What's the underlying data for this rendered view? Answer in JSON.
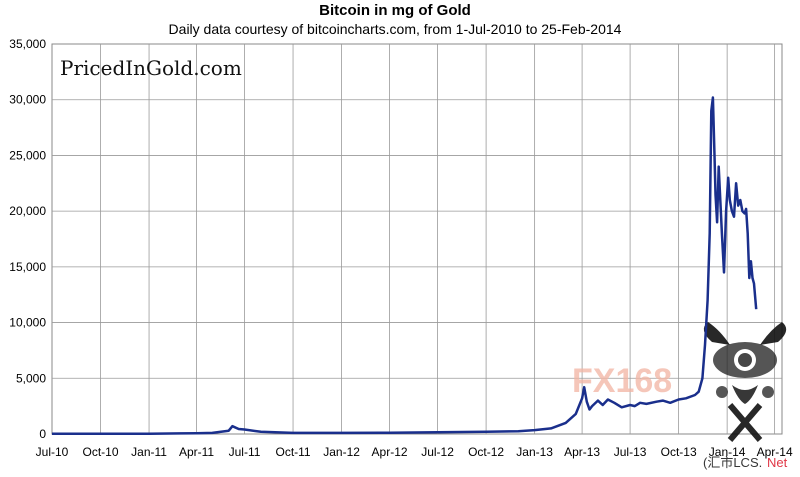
{
  "chart_data": {
    "type": "line",
    "title": "Bitcoin in mg of Gold",
    "subtitle": "Daily data courtesy of bitcoincharts.com, from 1-Jul-2010 to 25-Feb-2014",
    "xlabel": "",
    "ylabel": "",
    "ylim": [
      0,
      35000
    ],
    "xlim": [
      "2010-07-01",
      "2014-04-15"
    ],
    "grid": true,
    "y_ticks": [
      {
        "value": 0,
        "label": "0"
      },
      {
        "value": 5000,
        "label": "5,000"
      },
      {
        "value": 10000,
        "label": "10,000"
      },
      {
        "value": 15000,
        "label": "15,000"
      },
      {
        "value": 20000,
        "label": "20,000"
      },
      {
        "value": 25000,
        "label": "25,000"
      },
      {
        "value": 30000,
        "label": "30,000"
      },
      {
        "value": 35000,
        "label": "35,000"
      }
    ],
    "x_ticks": [
      {
        "date": "2010-07-01",
        "label": "Jul-10"
      },
      {
        "date": "2010-10-01",
        "label": "Oct-10"
      },
      {
        "date": "2011-01-01",
        "label": "Jan-11"
      },
      {
        "date": "2011-04-01",
        "label": "Apr-11"
      },
      {
        "date": "2011-07-01",
        "label": "Jul-11"
      },
      {
        "date": "2011-10-01",
        "label": "Oct-11"
      },
      {
        "date": "2012-01-01",
        "label": "Jan-12"
      },
      {
        "date": "2012-04-01",
        "label": "Apr-12"
      },
      {
        "date": "2012-07-01",
        "label": "Jul-12"
      },
      {
        "date": "2012-10-01",
        "label": "Oct-12"
      },
      {
        "date": "2013-01-01",
        "label": "Jan-13"
      },
      {
        "date": "2013-04-01",
        "label": "Apr-13"
      },
      {
        "date": "2013-07-01",
        "label": "Jul-13"
      },
      {
        "date": "2013-10-01",
        "label": "Oct-13"
      },
      {
        "date": "2014-01-01",
        "label": "Jan-14"
      },
      {
        "date": "2014-04-01",
        "label": "Apr-14"
      }
    ],
    "series": [
      {
        "color": "#1a2f8c",
        "x": [
          "2010-07-01",
          "2010-10-01",
          "2011-01-01",
          "2011-03-01",
          "2011-04-01",
          "2011-05-01",
          "2011-06-01",
          "2011-06-08",
          "2011-06-20",
          "2011-07-01",
          "2011-08-01",
          "2011-10-01",
          "2012-01-01",
          "2012-04-01",
          "2012-07-01",
          "2012-10-01",
          "2012-12-01",
          "2013-01-01",
          "2013-02-01",
          "2013-03-01",
          "2013-03-20",
          "2013-04-01",
          "2013-04-05",
          "2013-04-10",
          "2013-04-15",
          "2013-04-20",
          "2013-05-01",
          "2013-05-10",
          "2013-05-20",
          "2013-06-01",
          "2013-06-15",
          "2013-07-01",
          "2013-07-10",
          "2013-07-20",
          "2013-08-01",
          "2013-08-20",
          "2013-09-01",
          "2013-09-15",
          "2013-10-01",
          "2013-10-15",
          "2013-11-01",
          "2013-11-08",
          "2013-11-15",
          "2013-11-20",
          "2013-11-25",
          "2013-11-29",
          "2013-12-02",
          "2013-12-05",
          "2013-12-08",
          "2013-12-10",
          "2013-12-13",
          "2013-12-16",
          "2013-12-19",
          "2013-12-22",
          "2013-12-26",
          "2013-12-30",
          "2014-01-03",
          "2014-01-06",
          "2014-01-10",
          "2014-01-14",
          "2014-01-18",
          "2014-01-22",
          "2014-01-26",
          "2014-01-30",
          "2014-02-03",
          "2014-02-06",
          "2014-02-09",
          "2014-02-12",
          "2014-02-15",
          "2014-02-18",
          "2014-02-21",
          "2014-02-25"
        ],
        "y": [
          20,
          20,
          30,
          50,
          60,
          100,
          300,
          700,
          450,
          400,
          200,
          100,
          100,
          120,
          150,
          200,
          250,
          350,
          500,
          1000,
          1800,
          3200,
          4200,
          2900,
          2200,
          2500,
          3000,
          2600,
          3100,
          2800,
          2400,
          2600,
          2500,
          2800,
          2700,
          2900,
          3000,
          2800,
          3100,
          3200,
          3500,
          3800,
          5000,
          8000,
          12000,
          18000,
          29000,
          30200,
          25000,
          21500,
          19000,
          24000,
          21000,
          18000,
          14500,
          20000,
          23000,
          21000,
          20000,
          19500,
          22500,
          20500,
          21000,
          20000,
          19800,
          20200,
          18000,
          14000,
          15500,
          14000,
          13500,
          11200
        ]
      }
    ]
  },
  "branding": {
    "site_label": "PricedInGold.com"
  },
  "watermark": {
    "logo_text": "FX168",
    "site_text": "(汇市LCS.",
    "net_text": "Net"
  }
}
